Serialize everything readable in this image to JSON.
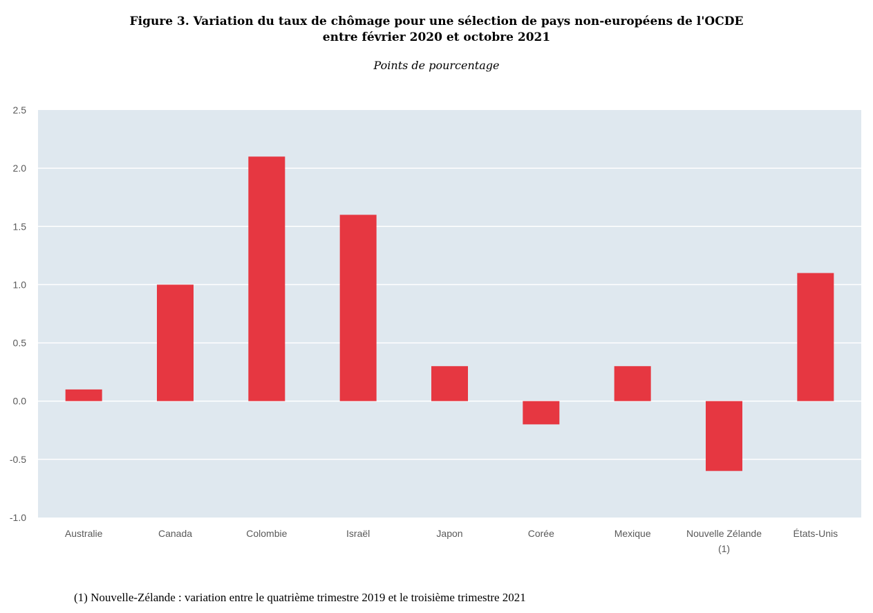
{
  "chart_data": {
    "type": "bar",
    "title_line1": "Figure 3. Variation du taux de chômage pour une sélection de pays non-européens de l'OCDE",
    "title_line2": "entre février 2020 et octobre 2021",
    "subtitle": "Points de pourcentage",
    "categories": [
      [
        "Australie"
      ],
      [
        "Canada"
      ],
      [
        "Colombie"
      ],
      [
        "Israël"
      ],
      [
        "Japon"
      ],
      [
        "Corée"
      ],
      [
        "Mexique"
      ],
      [
        "Nouvelle Zélande",
        "(1)"
      ],
      [
        "États-Unis"
      ]
    ],
    "values": [
      0.1,
      1.0,
      2.1,
      1.6,
      0.3,
      -0.2,
      0.3,
      -0.6,
      1.1
    ],
    "ylim": [
      -1.0,
      2.5
    ],
    "yticks": [
      "2.5",
      "2.0",
      "1.5",
      "1.0",
      "0.5",
      "0.0",
      "-0.5",
      "-1.0"
    ],
    "ytick_values": [
      2.5,
      2.0,
      1.5,
      1.0,
      0.5,
      0.0,
      -0.5,
      -1.0
    ],
    "grid": true,
    "bar_color": "#e63741",
    "plot_background": "#dfe8ef",
    "gridline_color": "#ffffff"
  },
  "footnote": "(1) Nouvelle-Zélande : variation entre le quatrième trimestre 2019 et le troisième trimestre 2021"
}
